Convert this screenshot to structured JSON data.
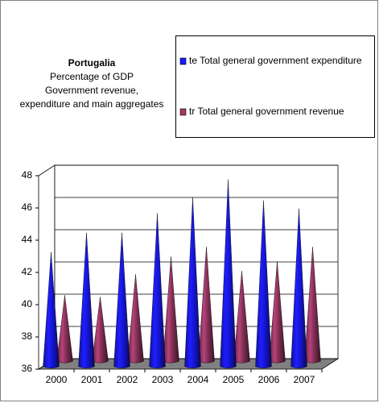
{
  "chart_data": {
    "type": "cone",
    "title": "Portugalia",
    "subtitle": [
      "Percentage of GDP",
      "Government revenue,",
      "expenditure and main aggregates"
    ],
    "categories": [
      "2000",
      "2001",
      "2002",
      "2003",
      "2004",
      "2005",
      "2006",
      "2007"
    ],
    "series": [
      {
        "name": "te Total general government expenditure",
        "color": "#1a1aff",
        "values": [
          43.1,
          44.3,
          44.3,
          45.5,
          46.5,
          47.6,
          46.3,
          45.8
        ]
      },
      {
        "name": "tr Total general government revenue",
        "color": "#a03a6a",
        "values": [
          40.1,
          40.0,
          41.4,
          42.5,
          43.1,
          41.6,
          42.2,
          43.1
        ]
      }
    ],
    "ylim": [
      36,
      48
    ],
    "yticks": [
      36,
      38,
      40,
      42,
      44,
      46,
      48
    ],
    "grid": true,
    "legend": "top-right"
  }
}
